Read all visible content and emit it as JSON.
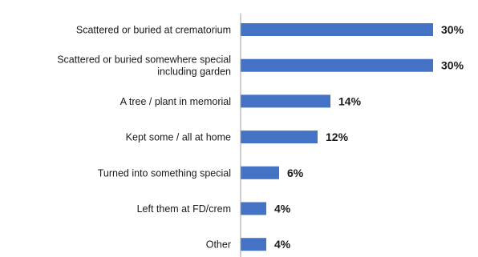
{
  "chart_data": {
    "type": "bar",
    "orientation": "horizontal",
    "categories": [
      [
        "Scattered or buried at crematorium"
      ],
      [
        "Scattered or buried somewhere special",
        "including garden"
      ],
      [
        "A tree / plant in memorial"
      ],
      [
        "Kept some / all at home"
      ],
      [
        "Turned into something special"
      ],
      [
        "Left them at FD/crem"
      ],
      [
        "Other"
      ]
    ],
    "values": [
      30,
      30,
      14,
      12,
      6,
      4,
      4
    ],
    "value_labels": [
      "30%",
      "30%",
      "14%",
      "12%",
      "6%",
      "4%",
      "4%"
    ],
    "unit": "%",
    "xlim": [
      0,
      30
    ],
    "bar_color": "#4472c4",
    "grid": false,
    "legend": "none",
    "title": "",
    "xlabel": "",
    "ylabel": ""
  }
}
